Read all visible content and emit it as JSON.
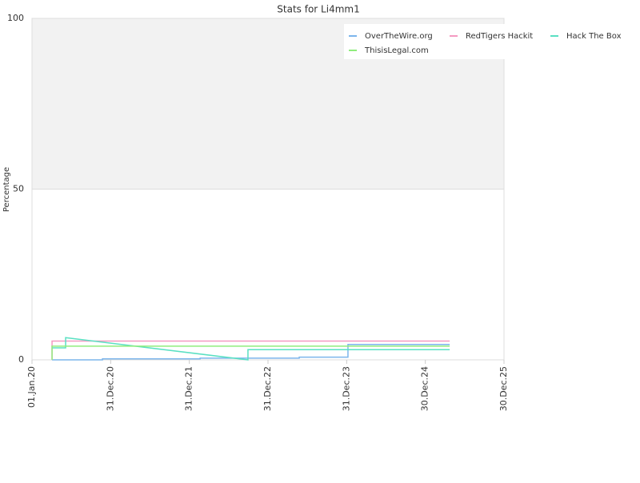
{
  "chart_data": {
    "type": "line",
    "title": "Stats for Li4mm1",
    "y_label": "Percentage",
    "xlim": [
      "2020-01-01",
      "2025-12-30"
    ],
    "xticks": [
      {
        "value": "2020-01-01",
        "label": "01.Jan.20"
      },
      {
        "value": "2020-12-31",
        "label": "31.Dec.20"
      },
      {
        "value": "2021-12-31",
        "label": "31.Dec.21"
      },
      {
        "value": "2022-12-31",
        "label": "31.Dec.22"
      },
      {
        "value": "2023-12-31",
        "label": "31.Dec.23"
      },
      {
        "value": "2024-12-30",
        "label": "30.Dec.24"
      },
      {
        "value": "2025-12-30",
        "label": "30.Dec.25"
      }
    ],
    "ylim": [
      0,
      100
    ],
    "yticks": [
      0,
      50,
      100
    ],
    "grid": true,
    "plot_bands": [
      {
        "from": 50,
        "to": 100,
        "color": "#f2f2f2"
      }
    ],
    "legend": "top-right",
    "series": [
      {
        "name": "OverTheWire.org",
        "color": "#7cb5ec",
        "x": [
          "2020-04-03",
          "2020-11-23",
          "2020-11-23",
          "2022-02-19",
          "2022-02-19",
          "2023-05-25",
          "2023-05-25",
          "2024-01-06",
          "2024-01-06",
          "2025-04-22"
        ],
        "values": [
          0,
          0,
          0.3,
          0.3,
          0.5,
          0.5,
          0.8,
          0.8,
          4.5,
          4.5
        ]
      },
      {
        "name": "RedTigers Hackit",
        "color": "#f49ac1",
        "x": [
          "2020-04-03",
          "2020-04-03",
          "2025-04-22"
        ],
        "values": [
          0,
          5.5,
          5.5
        ]
      },
      {
        "name": "Hack The Box",
        "color": "#5ae0c2",
        "x": [
          "2020-04-03",
          "2020-06-05",
          "2020-06-05",
          "2022-09-29",
          "2022-09-29",
          "2025-04-22"
        ],
        "values": [
          3.5,
          3.5,
          6.5,
          0,
          3,
          3
        ]
      },
      {
        "name": "ThisisLegal.com",
        "color": "#90ed7d",
        "x": [
          "2020-04-03",
          "2020-04-03",
          "2025-04-22"
        ],
        "values": [
          0,
          4,
          4
        ]
      }
    ]
  }
}
